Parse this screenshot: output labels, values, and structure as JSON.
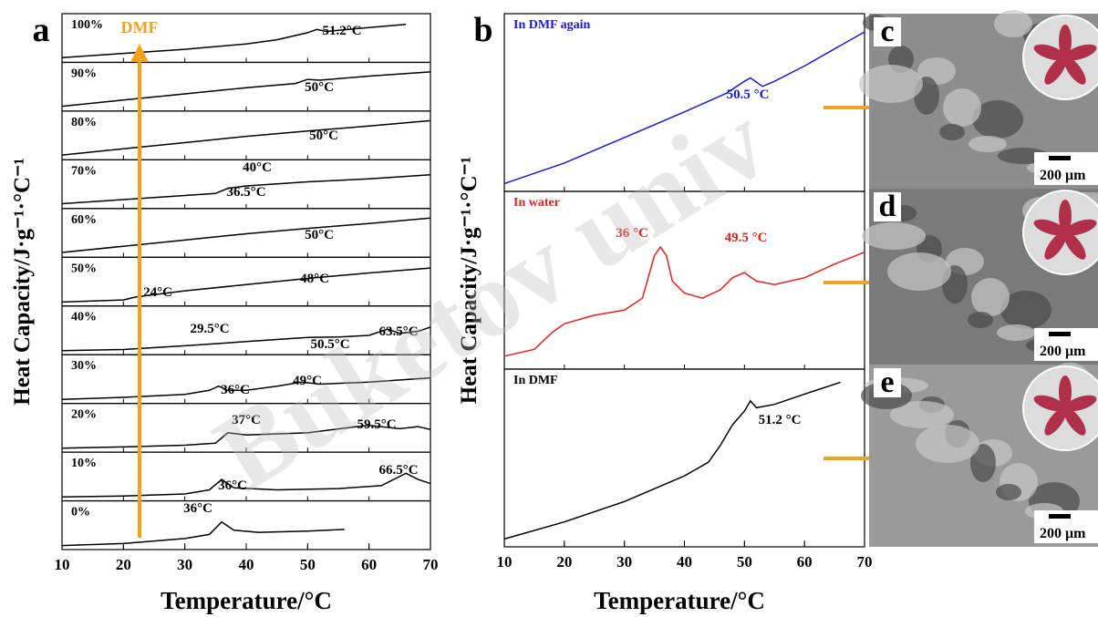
{
  "chart_data": [
    {
      "type": "line",
      "panel": "a",
      "arrow_label": "DMF",
      "xlabel": "Temperature/°C",
      "ylabel": "Heat Capacity/J·g⁻¹·°C⁻¹",
      "xlim": [
        10,
        70
      ],
      "xticks": [
        10,
        20,
        30,
        40,
        50,
        60,
        70
      ],
      "color": "#000000",
      "arrow_color": "#f5a21b",
      "series": [
        {
          "name": "100%",
          "x": [
            10,
            20,
            30,
            40,
            45,
            50,
            51.5,
            53,
            58,
            66
          ],
          "values": [
            0.5,
            1.5,
            2.5,
            3.8,
            4.8,
            6.5,
            7.3,
            6.8,
            7.5,
            8.5
          ],
          "annotations": [
            "51.2°C"
          ]
        },
        {
          "name": "90%",
          "x": [
            10,
            20,
            30,
            40,
            48,
            50,
            52,
            60,
            70
          ],
          "values": [
            0.5,
            2,
            3.5,
            5,
            6,
            7,
            6.8,
            7.8,
            8.8
          ],
          "annotations": [
            "50°C"
          ]
        },
        {
          "name": "80%",
          "x": [
            10,
            20,
            30,
            40,
            50,
            60,
            70
          ],
          "values": [
            0.5,
            2,
            3.5,
            5,
            6.3,
            7.5,
            8.8
          ],
          "annotations": [
            "50°C"
          ]
        },
        {
          "name": "70%",
          "x": [
            10,
            20,
            30,
            35,
            37,
            40,
            42,
            50,
            60,
            70
          ],
          "values": [
            0.5,
            1.5,
            2.5,
            3,
            4.2,
            4.8,
            5,
            5.8,
            6.5,
            7.5
          ],
          "annotations": [
            "40°C",
            "36.5°C"
          ]
        },
        {
          "name": "60%",
          "x": [
            10,
            20,
            30,
            40,
            50,
            60,
            70
          ],
          "values": [
            0.5,
            2,
            3.5,
            5,
            6.3,
            7.5,
            8.8
          ],
          "annotations": [
            "50°C"
          ]
        },
        {
          "name": "50%",
          "x": [
            10,
            20,
            22,
            30,
            40,
            50,
            60,
            70
          ],
          "values": [
            0.3,
            0.8,
            1.5,
            3,
            4.5,
            6,
            7.3,
            8.5
          ],
          "annotations": [
            "24°C",
            "48°C"
          ]
        },
        {
          "name": "40%",
          "x": [
            10,
            20,
            30,
            40,
            45,
            50,
            55,
            60,
            63,
            65,
            68,
            70
          ],
          "values": [
            0.3,
            0.6,
            1.5,
            2.5,
            3,
            3.5,
            3.6,
            4,
            5.5,
            4.5,
            5,
            6
          ],
          "annotations": [
            "29.5°C",
            "50.5°C",
            "63.5°C"
          ]
        },
        {
          "name": "30%",
          "x": [
            10,
            20,
            30,
            34,
            35.5,
            37,
            40,
            45,
            49,
            52,
            60,
            70
          ],
          "values": [
            0.3,
            0.8,
            1.5,
            2.5,
            3.5,
            2.5,
            2.5,
            3.5,
            4.5,
            4,
            4.5,
            5.5
          ],
          "annotations": [
            "36°C",
            "49°C"
          ]
        },
        {
          "name": "20%",
          "x": [
            10,
            20,
            30,
            35,
            37,
            40,
            50,
            58,
            60,
            65,
            68,
            70
          ],
          "values": [
            0.3,
            0.6,
            1,
            1.5,
            4,
            3.5,
            4,
            5.5,
            5.8,
            5,
            5.5,
            4.8
          ],
          "annotations": [
            "37°C",
            "59.5°C"
          ]
        },
        {
          "name": "10%",
          "x": [
            10,
            20,
            30,
            34,
            36,
            38,
            45,
            55,
            62,
            66,
            68,
            70
          ],
          "values": [
            0.3,
            0.5,
            1,
            2,
            4.5,
            2.5,
            2,
            2.3,
            3,
            6,
            4.5,
            3.5
          ],
          "annotations": [
            "36°C",
            "66.5°C"
          ]
        },
        {
          "name": "0%",
          "x": [
            10,
            20,
            30,
            34,
            36,
            38,
            42,
            50,
            56
          ],
          "values": [
            0.3,
            0.8,
            2,
            3,
            6,
            4,
            3.5,
            3.8,
            4.2
          ],
          "annotations": [
            "36°C"
          ]
        }
      ]
    },
    {
      "type": "line",
      "panel": "b",
      "xlabel": "Temperature/°C",
      "ylabel": "Heat Capacity/J·g⁻¹·°C⁻¹",
      "xlim": [
        10,
        70
      ],
      "xticks": [
        10,
        20,
        30,
        40,
        50,
        60,
        70
      ],
      "series": [
        {
          "name": "In DMF again",
          "color": "#1a1adc",
          "x": [
            10,
            20,
            30,
            40,
            47,
            50,
            51,
            53,
            55,
            60,
            70
          ],
          "values": [
            0.3,
            1.5,
            3,
            4.5,
            5.6,
            6.3,
            6.5,
            6,
            6.3,
            7.2,
            9.2
          ],
          "annotations": [
            "50.5 °C"
          ]
        },
        {
          "name": "In water",
          "color": "#e8201c",
          "x": [
            10,
            15,
            18,
            20,
            25,
            30,
            33,
            35,
            36,
            37,
            38,
            40,
            43,
            46,
            48,
            50,
            52,
            55,
            60,
            65,
            70
          ],
          "values": [
            0.6,
            1,
            2,
            2.5,
            3,
            3.3,
            4,
            6.5,
            7,
            6.5,
            5,
            4.3,
            4,
            4.5,
            5.2,
            5.5,
            5,
            4.8,
            5.2,
            6,
            6.7
          ],
          "annotations": [
            "36 °C",
            "49.5 °C"
          ]
        },
        {
          "name": "In DMF",
          "color": "#000000",
          "x": [
            10,
            20,
            30,
            40,
            44,
            46,
            48,
            50,
            51,
            52,
            55,
            60,
            66
          ],
          "values": [
            0.3,
            1.3,
            2.5,
            4,
            4.8,
            5.8,
            7,
            7.8,
            8.4,
            8,
            8.2,
            8.8,
            9.5
          ],
          "annotations": [
            "51.2 °C"
          ]
        }
      ]
    }
  ],
  "images": [
    {
      "panel": "c",
      "scale_label": "200 μm"
    },
    {
      "panel": "d",
      "scale_label": "200 μm"
    },
    {
      "panel": "e",
      "scale_label": "200 μm"
    }
  ],
  "watermark": "Buketov univ"
}
